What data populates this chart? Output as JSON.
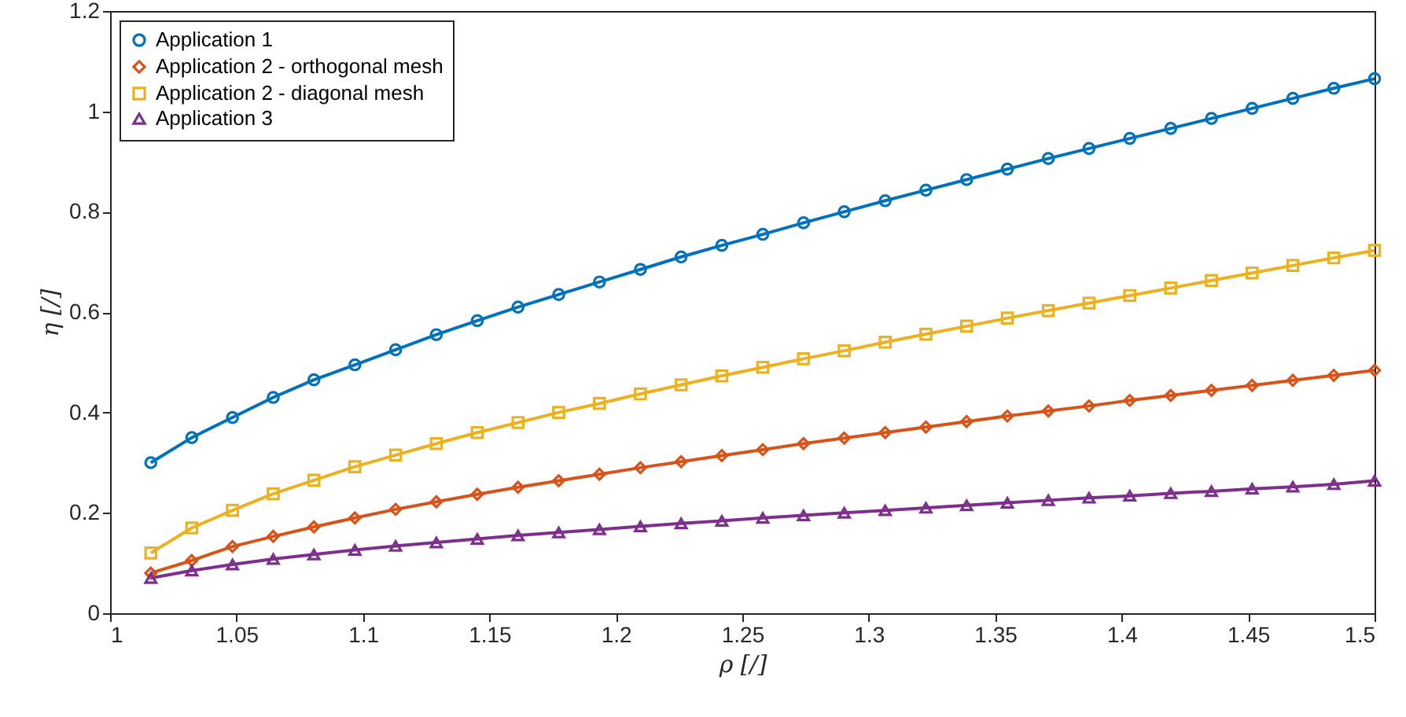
{
  "chart_data": {
    "type": "line",
    "xlabel": "ρ [/]",
    "ylabel": "η [/]",
    "x": [
      1.0161,
      1.0323,
      1.0484,
      1.0645,
      1.0806,
      1.0968,
      1.1129,
      1.129,
      1.1452,
      1.1613,
      1.1774,
      1.1935,
      1.2097,
      1.2258,
      1.2419,
      1.2581,
      1.2742,
      1.2903,
      1.3065,
      1.3226,
      1.3387,
      1.3548,
      1.371,
      1.3871,
      1.4032,
      1.4194,
      1.4355,
      1.4516,
      1.4677,
      1.4839,
      1.5
    ],
    "xlim": [
      1,
      1.5
    ],
    "xticks": [
      1,
      1.05,
      1.1,
      1.15,
      1.2,
      1.25,
      1.3,
      1.35,
      1.4,
      1.45,
      1.5
    ],
    "ylim": [
      0,
      1.2
    ],
    "yticks": [
      0,
      0.2,
      0.4,
      0.6,
      0.8,
      1,
      1.2
    ],
    "grid": false,
    "legend": "top left",
    "line_style": "solid",
    "series": [
      {
        "name": "Application 1",
        "color": "#0072bd",
        "marker": "circle",
        "values": [
          0.3,
          0.35,
          0.39,
          0.43,
          0.465,
          0.495,
          0.525,
          0.555,
          0.583,
          0.61,
          0.635,
          0.66,
          0.685,
          0.71,
          0.733,
          0.755,
          0.778,
          0.8,
          0.822,
          0.843,
          0.864,
          0.885,
          0.906,
          0.926,
          0.946,
          0.966,
          0.986,
          1.006,
          1.026,
          1.046,
          1.065
        ]
      },
      {
        "name": "Application 2 - orthogonal mesh",
        "color": "#d95319",
        "marker": "diamond",
        "values": [
          0.08,
          0.105,
          0.133,
          0.153,
          0.172,
          0.19,
          0.207,
          0.222,
          0.237,
          0.251,
          0.264,
          0.277,
          0.29,
          0.302,
          0.314,
          0.326,
          0.338,
          0.349,
          0.36,
          0.371,
          0.382,
          0.393,
          0.403,
          0.413,
          0.424,
          0.434,
          0.444,
          0.454,
          0.464,
          0.474,
          0.484
        ]
      },
      {
        "name": "Application 2 - diagonal mesh",
        "color": "#edb120",
        "marker": "square",
        "values": [
          0.12,
          0.17,
          0.205,
          0.238,
          0.265,
          0.292,
          0.315,
          0.338,
          0.36,
          0.38,
          0.4,
          0.418,
          0.437,
          0.455,
          0.473,
          0.49,
          0.507,
          0.523,
          0.54,
          0.556,
          0.572,
          0.588,
          0.603,
          0.618,
          0.633,
          0.648,
          0.663,
          0.678,
          0.693,
          0.708,
          0.723
        ]
      },
      {
        "name": "Application 3",
        "color": "#7e2f8e",
        "marker": "triangle",
        "values": [
          0.07,
          0.085,
          0.097,
          0.108,
          0.117,
          0.126,
          0.134,
          0.141,
          0.148,
          0.155,
          0.161,
          0.167,
          0.173,
          0.179,
          0.184,
          0.19,
          0.195,
          0.2,
          0.205,
          0.21,
          0.215,
          0.22,
          0.225,
          0.23,
          0.234,
          0.239,
          0.243,
          0.248,
          0.252,
          0.257,
          0.264
        ]
      }
    ]
  }
}
